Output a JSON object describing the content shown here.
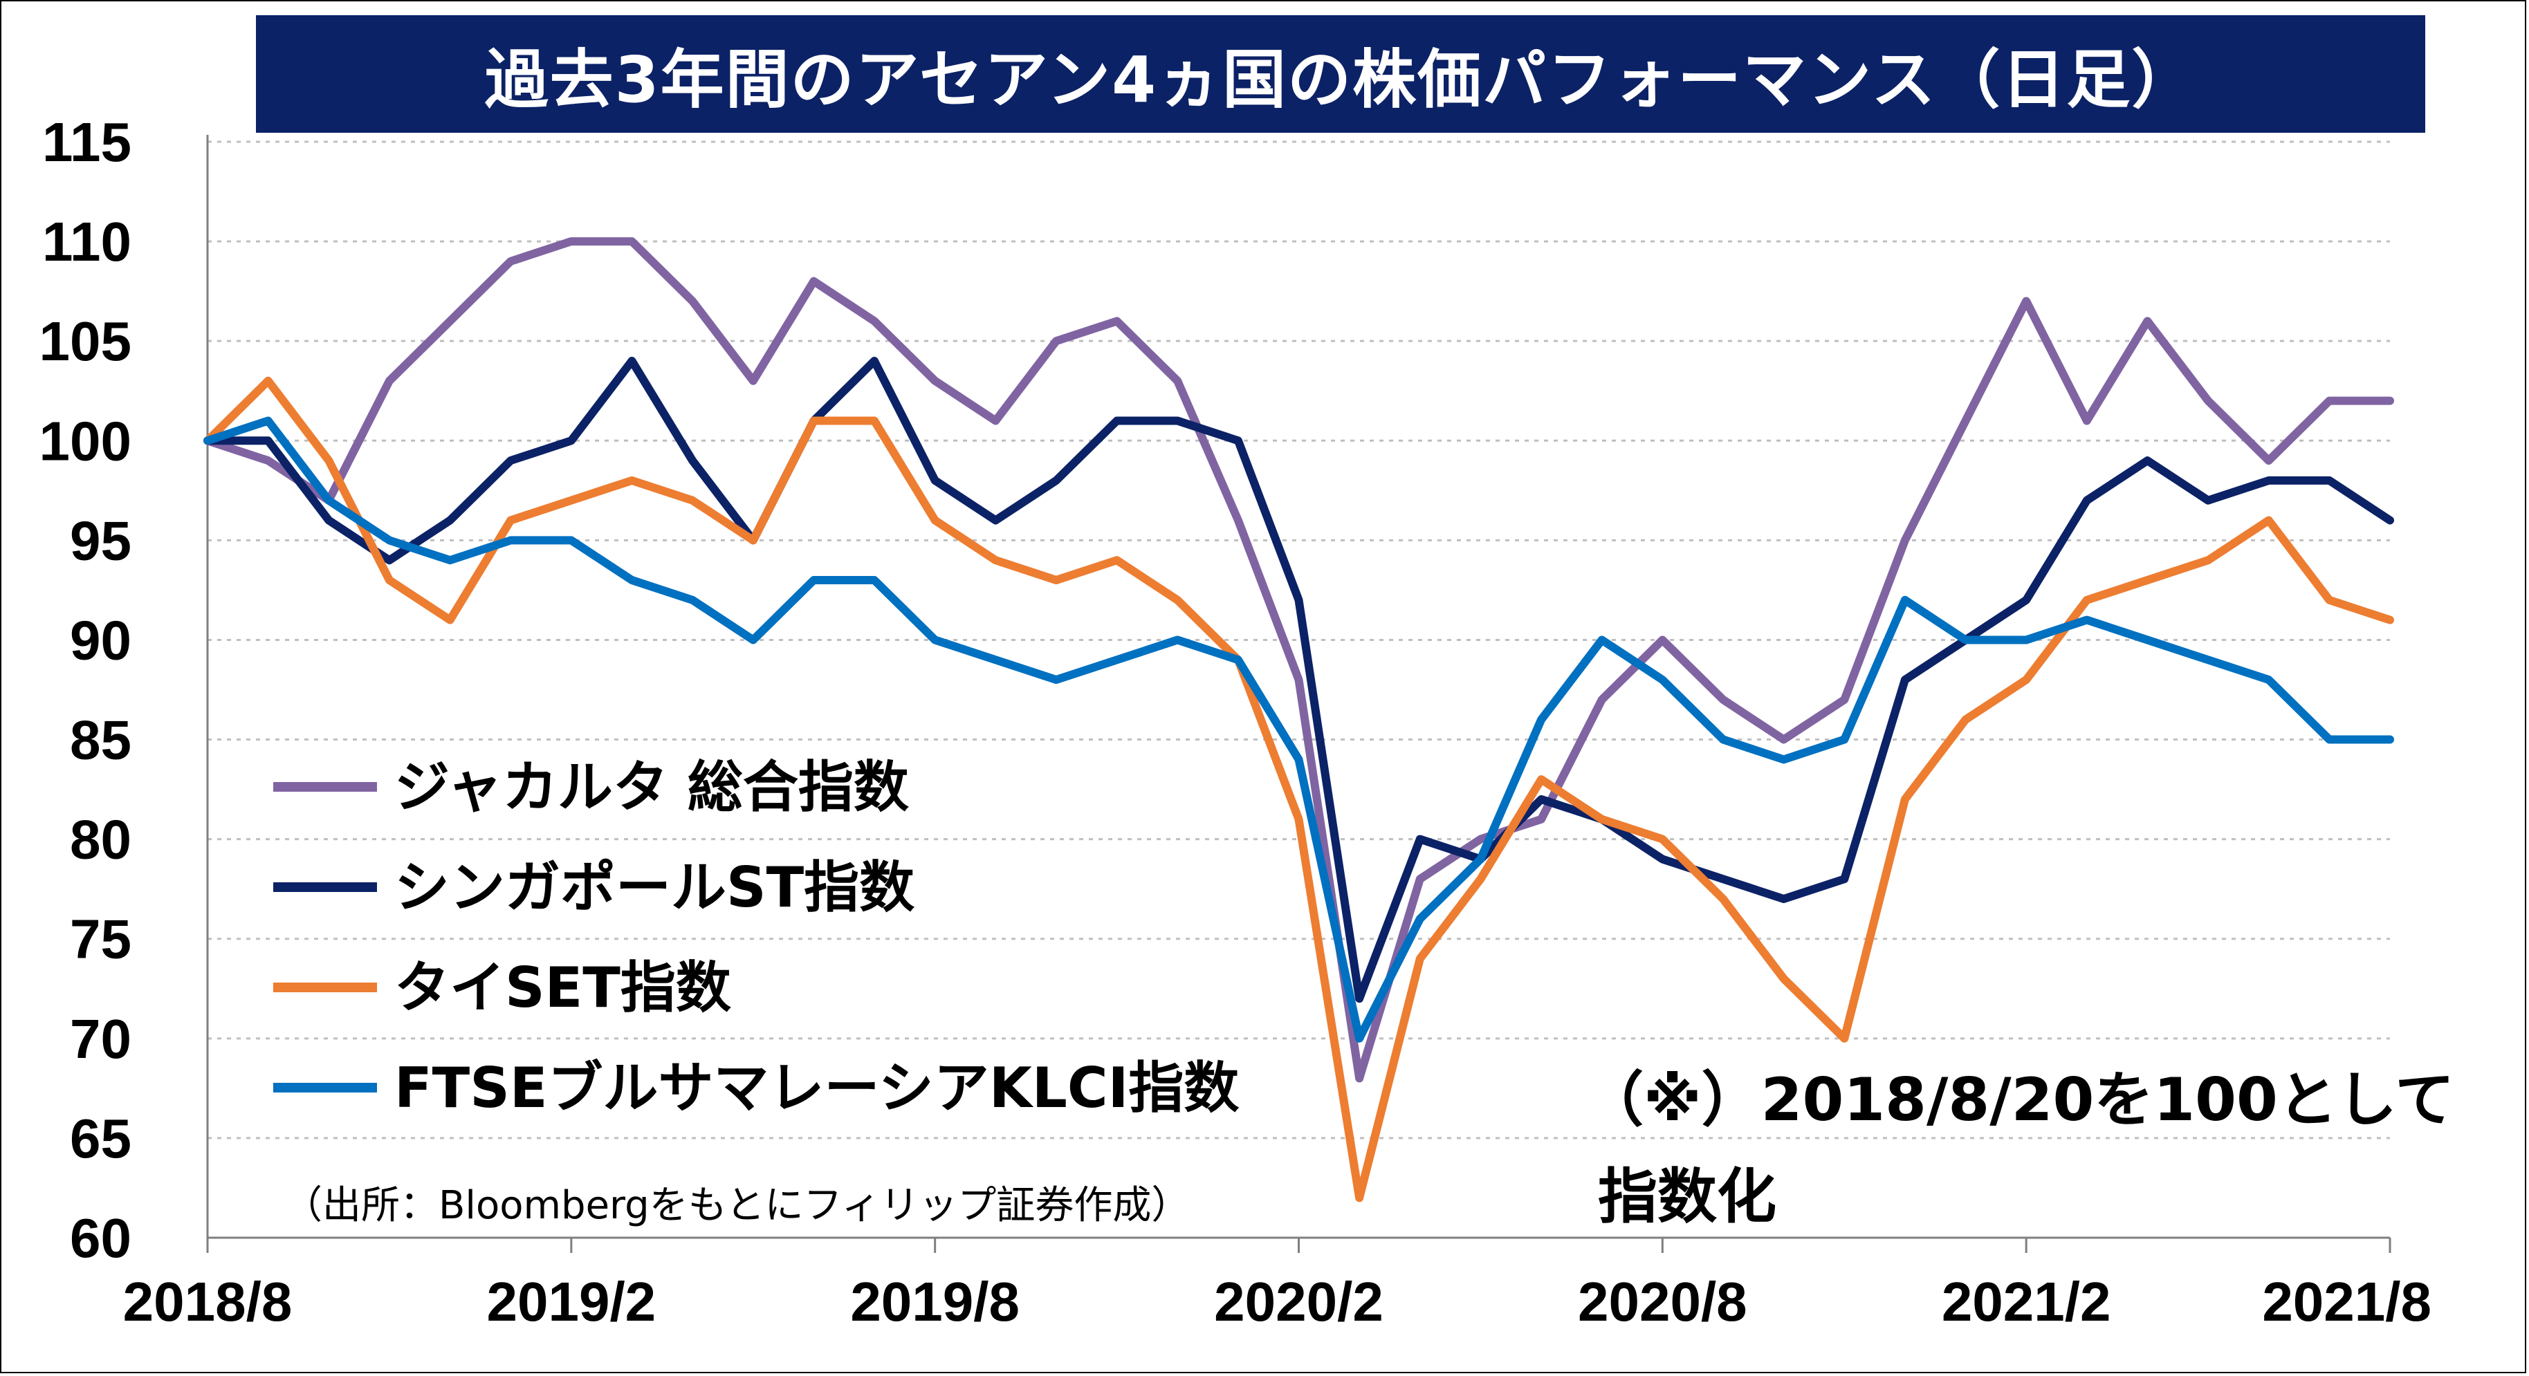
{
  "title": "過去3年間のアセアン4ヵ国の株価パフォーマンス（日足）",
  "source": "（出所：Bloombergをもとにフィリップ証券作成）",
  "note_line1": "（※）2018/8/20を100として",
  "note_line2": "指数化",
  "chart_data": {
    "type": "line",
    "title": "過去3年間のアセアン4ヵ国の株価パフォーマンス（日足）",
    "xlabel": "",
    "ylabel": "",
    "ylim": [
      60,
      115
    ],
    "yticks": [
      "115",
      "110",
      "105",
      "100",
      "95",
      "90",
      "85",
      "80",
      "75",
      "70",
      "65",
      "60"
    ],
    "xticks": [
      "2018/8",
      "2019/2",
      "2019/8",
      "2020/2",
      "2020/8",
      "2021/2",
      "2021/8"
    ],
    "grid": true,
    "legend_position": "lower-left",
    "x": [
      "2018/8",
      "2018/9",
      "2018/10",
      "2018/11",
      "2018/12",
      "2019/1",
      "2019/2",
      "2019/3",
      "2019/4",
      "2019/5",
      "2019/6",
      "2019/7",
      "2019/8",
      "2019/9",
      "2019/10",
      "2019/11",
      "2019/12",
      "2020/1",
      "2020/2",
      "2020/3",
      "2020/4",
      "2020/5",
      "2020/6",
      "2020/7",
      "2020/8",
      "2020/9",
      "2020/10",
      "2020/11",
      "2020/12",
      "2021/1",
      "2021/2",
      "2021/3",
      "2021/4",
      "2021/5",
      "2021/6",
      "2021/7",
      "2021/8"
    ],
    "series": [
      {
        "name": "ジャカルタ 総合指数",
        "color": "#8064a2",
        "values": [
          100,
          99,
          97,
          103,
          106,
          109,
          110,
          110,
          107,
          103,
          108,
          106,
          103,
          101,
          105,
          106,
          103,
          96,
          88,
          68,
          78,
          80,
          81,
          87,
          90,
          87,
          85,
          87,
          95,
          101,
          107,
          101,
          106,
          102,
          99,
          102,
          102
        ]
      },
      {
        "name": "シンガポールST指数",
        "color": "#0c2266",
        "values": [
          100,
          100,
          96,
          94,
          96,
          99,
          100,
          104,
          99,
          95,
          101,
          104,
          98,
          96,
          98,
          101,
          101,
          100,
          92,
          72,
          80,
          79,
          82,
          81,
          79,
          78,
          77,
          78,
          88,
          90,
          92,
          97,
          99,
          97,
          98,
          98,
          96
        ]
      },
      {
        "name": "タイSET指数",
        "color": "#ed7d31",
        "values": [
          100,
          103,
          99,
          93,
          91,
          96,
          97,
          98,
          97,
          95,
          101,
          101,
          96,
          94,
          93,
          94,
          92,
          89,
          81,
          62,
          74,
          78,
          83,
          81,
          80,
          77,
          73,
          70,
          82,
          86,
          88,
          92,
          93,
          94,
          96,
          92,
          91
        ]
      },
      {
        "name": "FTSEブルサマレーシアKLCI指数",
        "color": "#0070c0",
        "values": [
          100,
          101,
          97,
          95,
          94,
          95,
          95,
          93,
          92,
          90,
          93,
          93,
          90,
          89,
          88,
          89,
          90,
          89,
          84,
          70,
          76,
          79,
          86,
          90,
          88,
          85,
          84,
          85,
          92,
          90,
          90,
          91,
          90,
          89,
          88,
          85,
          85
        ]
      }
    ]
  }
}
